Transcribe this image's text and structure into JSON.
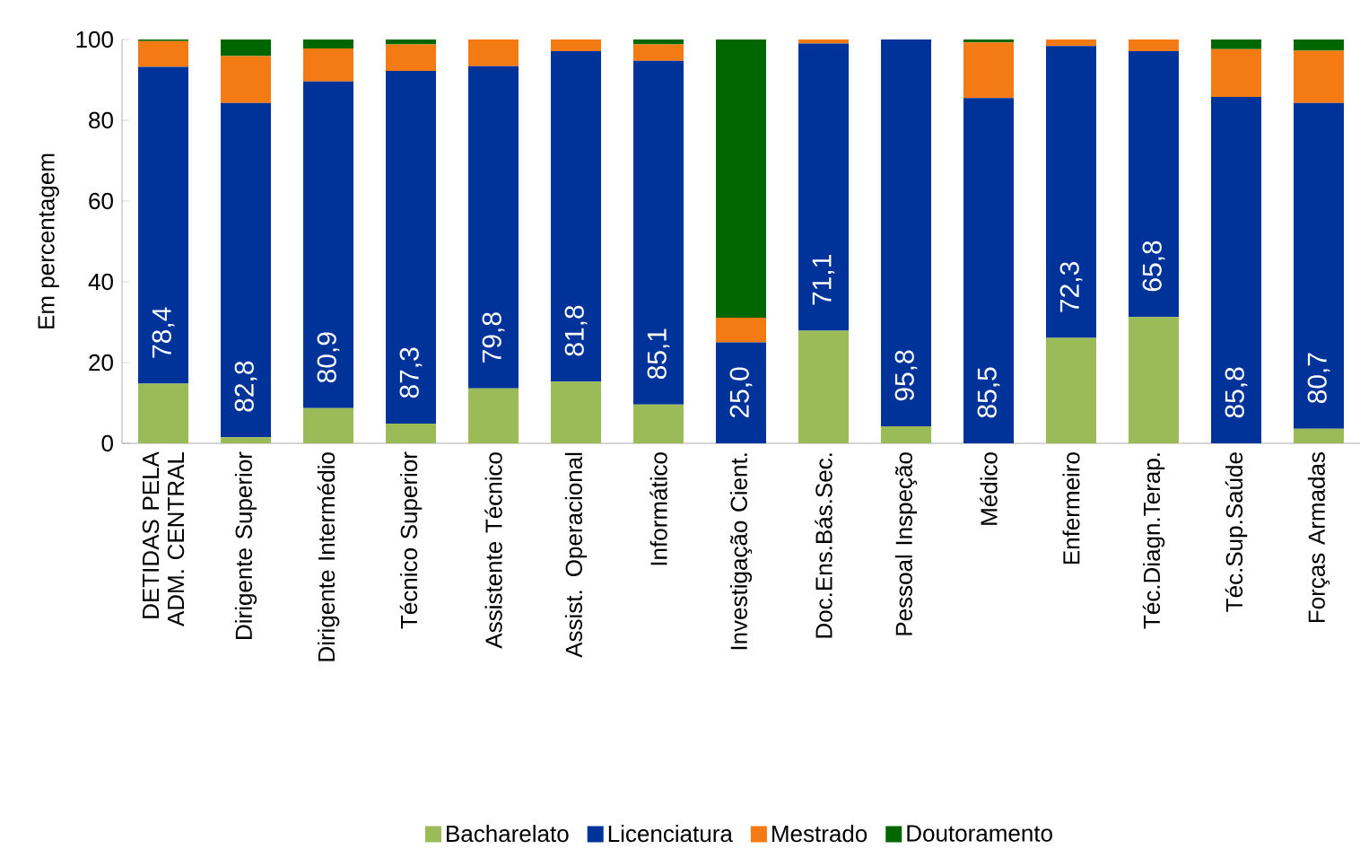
{
  "chart_data": {
    "type": "bar",
    "stacked": true,
    "ylabel": "Em percentagem",
    "categories": [
      "DETIDAS PELA ADM. CENTRAL",
      "Dirigente Superior",
      "Dirigente Intermédio",
      "Técnico Superior",
      "Assistente Técnico",
      "Assist. Operacional",
      "Informático",
      "Investigação Cient.",
      "Doc.Ens.Bás.Sec.",
      "Pessoal Inspeção",
      "Médico",
      "Enfermeiro",
      "Téc.Diagn.Terap.",
      "Téc.Sup.Saúde",
      "Forças Armadas"
    ],
    "series": [
      {
        "name": "Bacharelato",
        "color": "#9bbb59",
        "values": [
          14.8,
          1.5,
          8.7,
          4.9,
          13.6,
          15.3,
          9.6,
          0,
          27.9,
          4.2,
          0,
          26.1,
          31.3,
          0,
          3.6
        ]
      },
      {
        "name": "Licenciatura",
        "color": "#003399",
        "values": [
          78.4,
          82.8,
          80.9,
          87.3,
          79.8,
          81.8,
          85.1,
          25.0,
          71.1,
          95.8,
          85.5,
          72.3,
          65.8,
          85.8,
          80.7
        ],
        "value_labels": [
          "78,4",
          "82,8",
          "80,9",
          "87,3",
          "79,8",
          "81,8",
          "85,1",
          "25,0",
          "71,1",
          "95,8",
          "85,5",
          "72,3",
          "65,8",
          "85,8",
          "80,7"
        ]
      },
      {
        "name": "Mestrado",
        "color": "#f47a14",
        "values": [
          6.4,
          11.6,
          8.2,
          6.6,
          6.6,
          2.9,
          4.1,
          6.1,
          1.0,
          0,
          13.8,
          1.6,
          2.9,
          11.8,
          12.9
        ]
      },
      {
        "name": "Doutoramento",
        "color": "#006600",
        "values": [
          0.4,
          4.1,
          2.2,
          1.2,
          0,
          0,
          1.2,
          68.9,
          0,
          0,
          0.7,
          0,
          0,
          2.4,
          2.8
        ]
      }
    ],
    "ylim": [
      0,
      100
    ],
    "yticks": [
      0,
      20,
      40,
      60,
      80,
      100
    ],
    "legend": "bottom"
  }
}
